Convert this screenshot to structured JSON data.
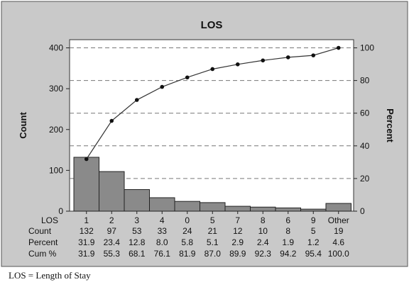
{
  "chart_data": {
    "type": "bar",
    "title": "LOS",
    "ylabel_left": "Count",
    "ylabel_right": "Percent",
    "ylim_left": [
      0,
      420
    ],
    "ylim_right": [
      0,
      105
    ],
    "yticks_left": [
      0,
      100,
      200,
      300,
      400
    ],
    "yticks_right": [
      0,
      20,
      40,
      60,
      80,
      100
    ],
    "grid": "dashed horizontal",
    "categories": [
      "1",
      "2",
      "3",
      "4",
      "0",
      "5",
      "7",
      "8",
      "6",
      "9",
      "Other"
    ],
    "series": [
      {
        "type": "bar",
        "values": [
          132,
          97,
          53,
          33,
          24,
          21,
          12,
          10,
          8,
          5,
          19
        ]
      },
      {
        "type": "line",
        "values": [
          31.9,
          55.3,
          68.1,
          76.1,
          81.9,
          87.0,
          89.9,
          92.3,
          94.2,
          95.4,
          100.0
        ]
      }
    ],
    "table": {
      "row_labels": [
        "LOS",
        "Count",
        "Percent",
        "Cum %"
      ],
      "count": [
        "132",
        "97",
        "53",
        "33",
        "24",
        "21",
        "12",
        "10",
        "8",
        "5",
        "19"
      ],
      "percent": [
        "31.9",
        "23.4",
        "12.8",
        "8.0",
        "5.8",
        "5.1",
        "2.9",
        "2.4",
        "1.9",
        "1.2",
        "4.6"
      ],
      "cum_percent": [
        "31.9",
        "55.3",
        "68.1",
        "76.1",
        "81.9",
        "87.0",
        "89.9",
        "92.3",
        "94.2",
        "95.4",
        "100.0"
      ]
    },
    "colors": {
      "panel": "#c9c9c9",
      "plot_bg": "#ffffff",
      "bar_fill": "#8a8a8a",
      "line": "#333333",
      "grid": "#777777"
    }
  },
  "caption": "LOS = Length of Stay"
}
